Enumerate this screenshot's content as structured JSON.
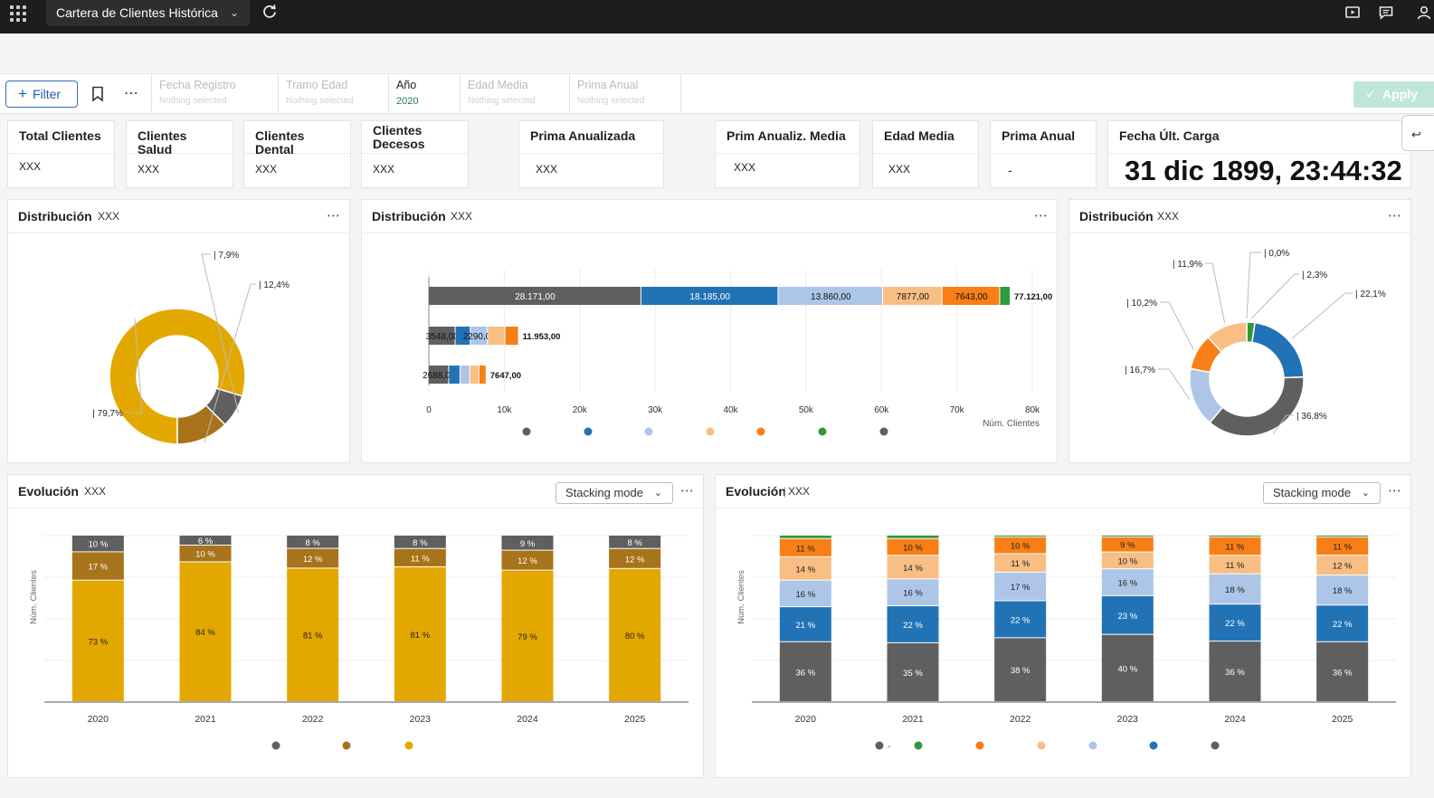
{
  "app": {
    "title": "Cartera de Clientes Histórica"
  },
  "filterbar": {
    "filter_label": "Filter",
    "apply_label": "Apply",
    "fields": [
      {
        "label": "Fecha Registro",
        "value": "Nothing selected",
        "active": false
      },
      {
        "label": "Tramo Edad",
        "value": "Nothing selected",
        "active": false
      },
      {
        "label": "Año",
        "value": "2020",
        "active": true
      },
      {
        "label": "Edad Media",
        "value": "Nothing selected",
        "active": false
      },
      {
        "label": "Prima Anual",
        "value": "Nothing selected",
        "active": false
      }
    ]
  },
  "kpis": [
    {
      "label": "Total Clientes",
      "value": "XXX"
    },
    {
      "label": "Clientes Salud",
      "value": "XXX"
    },
    {
      "label": "Clientes Dental",
      "value": "XXX"
    },
    {
      "label": "Clientes Decesos",
      "value": "XXX"
    },
    {
      "label": "Prima Anualizada",
      "value": "XXX"
    },
    {
      "label": "Prim Anualiz. Media",
      "value": "XXX"
    },
    {
      "label": "Edad Media",
      "value": "XXX"
    },
    {
      "label": "Prima Anual",
      "value": "-"
    },
    {
      "label": "Fecha Últ. Carga",
      "value": "31 dic 1899, 23:44:32"
    }
  ],
  "panels": {
    "dist1": {
      "title": "Distribución",
      "sub": "XXX"
    },
    "dist2": {
      "title": "Distribución",
      "sub": "XXX"
    },
    "dist3": {
      "title": "Distribución",
      "sub": "XXX"
    },
    "evo1": {
      "title": "Evolución",
      "sub": "XXX",
      "stacking": "Stacking mode"
    },
    "evo2": {
      "title": "Evolución",
      "sub": "XXX",
      "stacking": "Stacking mode"
    }
  },
  "colors": {
    "gray": "#5f5f5f",
    "blue": "#2273b6",
    "lightblue": "#adc6e8",
    "peach": "#f8be84",
    "orange": "#f77f16",
    "green": "#2e9a3a",
    "gold": "#e3a800",
    "brown": "#a7731b"
  },
  "chart_data": [
    {
      "id": "dist1",
      "type": "pie",
      "donut": true,
      "slices": [
        {
          "value": 79.7,
          "label": "79,7%",
          "color": "#e3a800"
        },
        {
          "value": 7.9,
          "label": "7,9%",
          "color": "#5f5f5f"
        },
        {
          "value": 12.4,
          "label": "12,4%",
          "color": "#a7731b"
        }
      ]
    },
    {
      "id": "dist2",
      "type": "bar",
      "orientation": "horizontal",
      "stacked": true,
      "xlabel": "Núm. Clientes",
      "xlim": [
        0,
        80000
      ],
      "xticks": [
        "0",
        "10k",
        "20k",
        "30k",
        "40k",
        "50k",
        "60k",
        "70k",
        "80k"
      ],
      "rows": [
        {
          "total_label": "77.121,00",
          "segments": [
            {
              "value": 28171,
              "label": "28.171,00",
              "color": "#5f5f5f"
            },
            {
              "value": 18185,
              "label": "18.185,00",
              "color": "#2273b6"
            },
            {
              "value": 13860,
              "label": "13.860,00",
              "color": "#adc6e8"
            },
            {
              "value": 7877,
              "label": "7877,00",
              "color": "#f8be84"
            },
            {
              "value": 7643,
              "label": "7643,00",
              "color": "#f77f16"
            },
            {
              "value": 1385,
              "label": "",
              "color": "#2e9a3a"
            }
          ]
        },
        {
          "total_label": "11.953,00",
          "segments": [
            {
              "value": 3548,
              "label": "3548,00",
              "color": "#5f5f5f"
            },
            {
              "value": 2000,
              "label": "",
              "color": "#2273b6"
            },
            {
              "value": 2290,
              "label": "2290,00",
              "color": "#adc6e8"
            },
            {
              "value": 2300,
              "label": "",
              "color": "#f8be84"
            },
            {
              "value": 1815,
              "label": "",
              "color": "#f77f16"
            }
          ]
        },
        {
          "total_label": "7647,00",
          "segments": [
            {
              "value": 2688,
              "label": "2688,00",
              "color": "#5f5f5f"
            },
            {
              "value": 1500,
              "label": "",
              "color": "#2273b6"
            },
            {
              "value": 1300,
              "label": "",
              "color": "#adc6e8"
            },
            {
              "value": 1200,
              "label": "",
              "color": "#f8be84"
            },
            {
              "value": 959,
              "label": "",
              "color": "#f77f16"
            }
          ]
        }
      ],
      "legend": [
        "#5f5f5f",
        "#2273b6",
        "#adc6e8",
        "#f8be84",
        "#f77f16",
        "#2e9a3a",
        "#5f5f5f"
      ]
    },
    {
      "id": "dist3",
      "type": "pie",
      "donut": true,
      "slices": [
        {
          "value": 0.0,
          "label": "0,0%",
          "color": "#5f5f5f"
        },
        {
          "value": 2.3,
          "label": "2,3%",
          "color": "#2e9a3a"
        },
        {
          "value": 22.1,
          "label": "22,1%",
          "color": "#2273b6"
        },
        {
          "value": 36.8,
          "label": "36,8%",
          "color": "#5f5f5f"
        },
        {
          "value": 16.7,
          "label": "16,7%",
          "color": "#adc6e8"
        },
        {
          "value": 10.2,
          "label": "10,2%",
          "color": "#f77f16"
        },
        {
          "value": 11.9,
          "label": "11,9%",
          "color": "#f8be84"
        }
      ]
    },
    {
      "id": "evo1",
      "type": "bar",
      "stacked": true,
      "percent": true,
      "ylabel": "Núm. Clientes",
      "categories": [
        "2020",
        "2021",
        "2022",
        "2023",
        "2024",
        "2025"
      ],
      "series": [
        {
          "values": [
            73,
            84,
            81,
            81,
            79,
            80
          ],
          "color": "#e3a800"
        },
        {
          "values": [
            17,
            10,
            12,
            11,
            12,
            12
          ],
          "color": "#a7731b"
        },
        {
          "values": [
            10,
            6,
            8,
            8,
            9,
            8
          ],
          "color": "#5f5f5f"
        }
      ],
      "legend": [
        "#5f5f5f",
        "#a7731b",
        "#e3a800"
      ]
    },
    {
      "id": "evo2",
      "type": "bar",
      "stacked": true,
      "percent": true,
      "ylabel": "Núm. Clientes",
      "categories": [
        "2020",
        "2021",
        "2022",
        "2023",
        "2024",
        "2025"
      ],
      "series": [
        {
          "values": [
            36,
            35,
            38,
            40,
            36,
            36
          ],
          "color": "#5f5f5f"
        },
        {
          "values": [
            21,
            22,
            22,
            23,
            22,
            22
          ],
          "color": "#2273b6"
        },
        {
          "values": [
            16,
            16,
            17,
            16,
            18,
            18
          ],
          "color": "#adc6e8"
        },
        {
          "values": [
            14,
            14,
            11,
            10,
            11,
            12
          ],
          "color": "#f8be84"
        },
        {
          "values": [
            11,
            10,
            10,
            9,
            11,
            11
          ],
          "color": "#f77f16"
        },
        {
          "values": [
            2,
            2,
            1,
            1,
            1,
            1
          ],
          "color": "#2e9a3a",
          "hide_label": true
        }
      ],
      "legend": [
        "#5f5f5f",
        "#2e9a3a",
        "#f77f16",
        "#f8be84",
        "#adc6e8",
        "#2273b6",
        "#5f5f5f"
      ],
      "legend_first_label": "-"
    }
  ]
}
